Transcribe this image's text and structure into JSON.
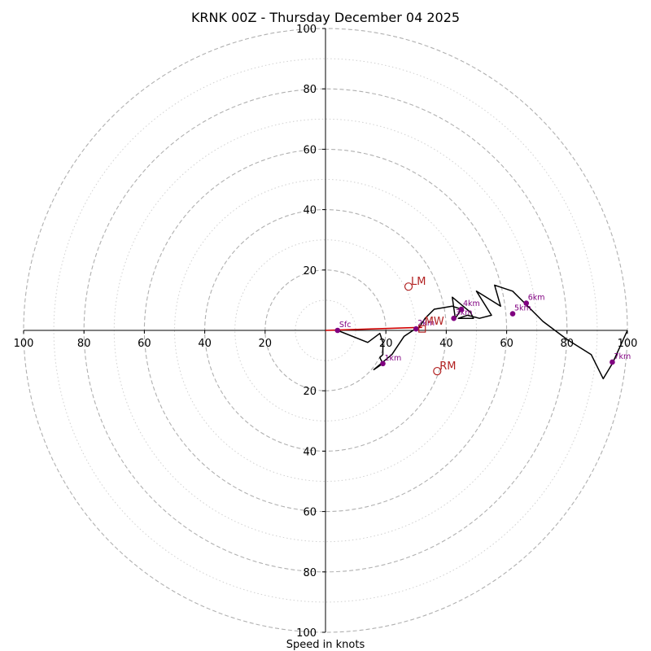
{
  "chart_data": {
    "type": "hodograph",
    "title": "KRNK 00Z - Thursday December 04 2025",
    "xlabel": "Speed in knots",
    "range": [
      -100,
      100
    ],
    "dashed_rings": [
      20,
      40,
      60,
      80,
      100
    ],
    "dotted_rings": [
      10,
      30,
      50,
      70,
      90
    ],
    "x_tick_labels": [
      {
        "value": -100,
        "label": "100"
      },
      {
        "value": -80,
        "label": "80"
      },
      {
        "value": -60,
        "label": "60"
      },
      {
        "value": -40,
        "label": "40"
      },
      {
        "value": -20,
        "label": "20"
      },
      {
        "value": 20,
        "label": "20"
      },
      {
        "value": 40,
        "label": "40"
      },
      {
        "value": 60,
        "label": "60"
      },
      {
        "value": 80,
        "label": "80"
      },
      {
        "value": 100,
        "label": "100"
      }
    ],
    "y_tick_labels": [
      {
        "value": 100,
        "label": "100"
      },
      {
        "value": 80,
        "label": "80"
      },
      {
        "value": 60,
        "label": "60"
      },
      {
        "value": 40,
        "label": "40"
      },
      {
        "value": 20,
        "label": "20"
      },
      {
        "value": -20,
        "label": "20"
      },
      {
        "value": -40,
        "label": "40"
      },
      {
        "value": -60,
        "label": "60"
      },
      {
        "value": -80,
        "label": "80"
      },
      {
        "value": -100,
        "label": "100"
      }
    ],
    "hodograph_trace": [
      [
        4,
        0
      ],
      [
        14,
        -4
      ],
      [
        18,
        -1
      ],
      [
        19,
        -4
      ],
      [
        19,
        -8
      ],
      [
        18,
        -9
      ],
      [
        19,
        -11
      ],
      [
        16,
        -13
      ],
      [
        22,
        -8
      ],
      [
        26,
        -2
      ],
      [
        29,
        0
      ],
      [
        31,
        1
      ],
      [
        33,
        4
      ],
      [
        36,
        7
      ],
      [
        42,
        8
      ],
      [
        45,
        7
      ],
      [
        43,
        4
      ],
      [
        42,
        11
      ],
      [
        48,
        6
      ],
      [
        49,
        4
      ],
      [
        44,
        4
      ],
      [
        47,
        5
      ],
      [
        51,
        4
      ],
      [
        55,
        5
      ],
      [
        50,
        13
      ],
      [
        58,
        8
      ],
      [
        56,
        15
      ],
      [
        62,
        13
      ],
      [
        66,
        9
      ],
      [
        72,
        3
      ],
      [
        80,
        -3
      ],
      [
        88,
        -8
      ],
      [
        92,
        -16
      ],
      [
        95,
        -11
      ],
      [
        100,
        0
      ]
    ],
    "height_markers": [
      {
        "label": "Sfc",
        "u": 4,
        "v": 0
      },
      {
        "label": "1km",
        "u": 19,
        "v": -11
      },
      {
        "label": "2km",
        "u": 30,
        "v": 0.5
      },
      {
        "label": "3km",
        "u": 42.5,
        "v": 4
      },
      {
        "label": "4km",
        "u": 45,
        "v": 7
      },
      {
        "label": "5km",
        "u": 62,
        "v": 5.5
      },
      {
        "label": "6km",
        "u": 66.5,
        "v": 9
      },
      {
        "label": "7km",
        "u": 95,
        "v": -10.5
      }
    ],
    "storm_motions": [
      {
        "label": "LM",
        "u": 27.5,
        "v": 14.5
      },
      {
        "label": "RM",
        "u": 37,
        "v": -13.5
      }
    ],
    "mean_wind": {
      "label": "MW",
      "u": 32,
      "v": 0.5
    },
    "shear_vector": {
      "from": [
        0,
        0
      ],
      "to": [
        32,
        1
      ]
    },
    "colors": {
      "trace": "#000000",
      "markers": "#800080",
      "storm": "#b22222",
      "shear": "#d00000",
      "grid": "#b0b0b0",
      "axis": "#000000"
    }
  }
}
